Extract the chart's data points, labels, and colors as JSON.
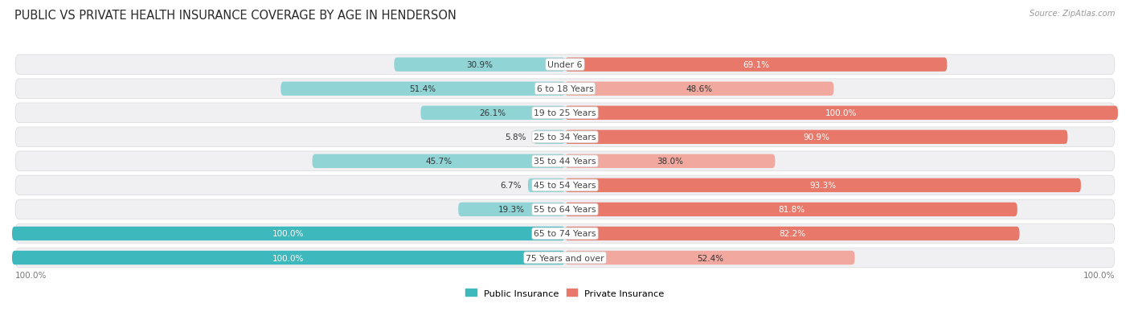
{
  "title": "PUBLIC VS PRIVATE HEALTH INSURANCE COVERAGE BY AGE IN HENDERSON",
  "source": "Source: ZipAtlas.com",
  "categories": [
    "Under 6",
    "6 to 18 Years",
    "19 to 25 Years",
    "25 to 34 Years",
    "35 to 44 Years",
    "45 to 54 Years",
    "55 to 64 Years",
    "65 to 74 Years",
    "75 Years and over"
  ],
  "public_values": [
    30.9,
    51.4,
    26.1,
    5.8,
    45.7,
    6.7,
    19.3,
    100.0,
    100.0
  ],
  "private_values": [
    69.1,
    48.6,
    100.0,
    90.9,
    38.0,
    93.3,
    81.8,
    82.2,
    52.4
  ],
  "public_color_solid": "#3db8bc",
  "public_color_light": "#90d4d6",
  "private_color_solid": "#e8796a",
  "private_color_light": "#f0a89f",
  "row_bg_color": "#f0f0f2",
  "row_border_color": "#d8d8dc",
  "title_fontsize": 10.5,
  "label_fontsize": 7.8,
  "value_fontsize": 7.5,
  "legend_public": "Public Insurance",
  "legend_private": "Private Insurance",
  "solid_threshold_pub": 60.0,
  "solid_threshold_priv": 65.0
}
